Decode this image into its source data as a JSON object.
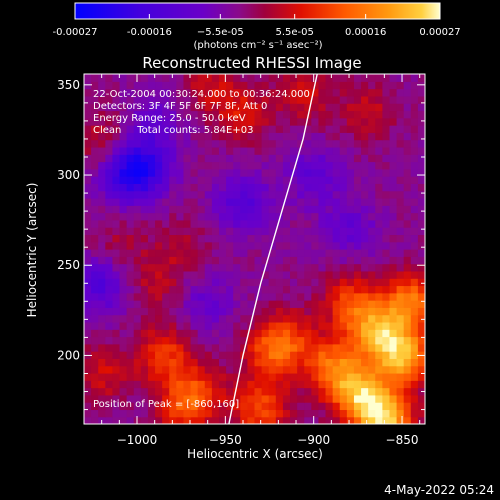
{
  "chart_data": {
    "type": "heatmap",
    "title": "Reconstructed RHESSI Image",
    "xlabel": "Heliocentric X (arcsec)",
    "ylabel": "Heliocentric Y (arcsec)",
    "xlim": [
      -1030,
      -837
    ],
    "ylim": [
      162,
      356
    ],
    "x_ticks": [
      -1000,
      -950,
      -900,
      -850
    ],
    "x_tick_labels": [
      "−1000",
      "−950",
      "−900",
      "−850"
    ],
    "y_ticks": [
      200,
      250,
      300,
      350
    ],
    "y_tick_labels": [
      "200",
      "250",
      "300",
      "350"
    ],
    "colorbar": {
      "range": [
        -0.00027,
        0.00027
      ],
      "ticks": [
        -0.00027,
        -0.00016,
        -5.5e-05,
        5.5e-05,
        0.00016,
        0.00027
      ],
      "tick_labels": [
        "-0.00027",
        "-0.00016",
        "−5.5e-05",
        "5.5e-05",
        "0.00016",
        "0.00027"
      ],
      "units": "(photons cm⁻² s⁻¹ asec⁻²)",
      "palette": [
        "#0000ff",
        "#4400dd",
        "#6a00c8",
        "#8a0a8a",
        "#a0003c",
        "#e01000",
        "#ff5a00",
        "#ff9a10",
        "#ffd040",
        "#ffffd0"
      ]
    },
    "annotations": {
      "time": "22-Oct-2004 00:30:24.000 to 00:36:24.000",
      "detectors": "Detectors: 3F 4F 5F 6F 7F 8F, Att 0",
      "energy": "Energy Range: 25.0 - 50.0 keV",
      "clean": "Clean     Total counts: 5.84E+03",
      "peak": "Position of Peak = [-860,160]"
    },
    "limb_curve": [
      [
        -948,
        162
      ],
      [
        -940,
        200
      ],
      [
        -930,
        240
      ],
      [
        -918,
        280
      ],
      [
        -906,
        320
      ],
      [
        -898,
        356
      ]
    ],
    "regions": [
      {
        "x": -930,
        "y": 170,
        "v": 0.00014
      },
      {
        "x": -925,
        "y": 200,
        "v": 0.00012
      },
      {
        "x": -915,
        "y": 210,
        "v": 0.00011
      },
      {
        "x": -890,
        "y": 195,
        "v": 0.00016
      },
      {
        "x": -875,
        "y": 180,
        "v": 0.00022
      },
      {
        "x": -860,
        "y": 165,
        "v": 0.00027
      },
      {
        "x": -850,
        "y": 200,
        "v": 0.00024
      },
      {
        "x": -845,
        "y": 230,
        "v": 0.00018
      },
      {
        "x": -865,
        "y": 215,
        "v": 0.0002
      },
      {
        "x": -880,
        "y": 230,
        "v": 0.00012
      },
      {
        "x": -985,
        "y": 200,
        "v": 0.00013
      },
      {
        "x": -965,
        "y": 180,
        "v": 0.00011
      },
      {
        "x": -1020,
        "y": 190,
        "v": 8e-05
      },
      {
        "x": -975,
        "y": 170,
        "v": 0.0001
      },
      {
        "x": -940,
        "y": 335,
        "v": 9e-05
      },
      {
        "x": -905,
        "y": 345,
        "v": 8e-05
      },
      {
        "x": -870,
        "y": 335,
        "v": 7e-05
      },
      {
        "x": -960,
        "y": 350,
        "v": 7e-05
      },
      {
        "x": -1020,
        "y": 320,
        "v": 6e-05
      },
      {
        "x": -1010,
        "y": 260,
        "v": 5e-05
      },
      {
        "x": -990,
        "y": 240,
        "v": 6e-05
      },
      {
        "x": -975,
        "y": 260,
        "v": 5e-05
      },
      {
        "x": -1005,
        "y": 300,
        "v": -0.00014
      },
      {
        "x": -995,
        "y": 305,
        "v": -0.00012
      },
      {
        "x": -1020,
        "y": 240,
        "v": -0.00011
      },
      {
        "x": -940,
        "y": 285,
        "v": -0.0001
      },
      {
        "x": -900,
        "y": 300,
        "v": -8e-05
      },
      {
        "x": -880,
        "y": 270,
        "v": -7e-05
      },
      {
        "x": -960,
        "y": 230,
        "v": -6e-05
      },
      {
        "x": -990,
        "y": 330,
        "v": -7e-05
      }
    ]
  },
  "footer": {
    "date": "4-May-2022 05:24"
  }
}
